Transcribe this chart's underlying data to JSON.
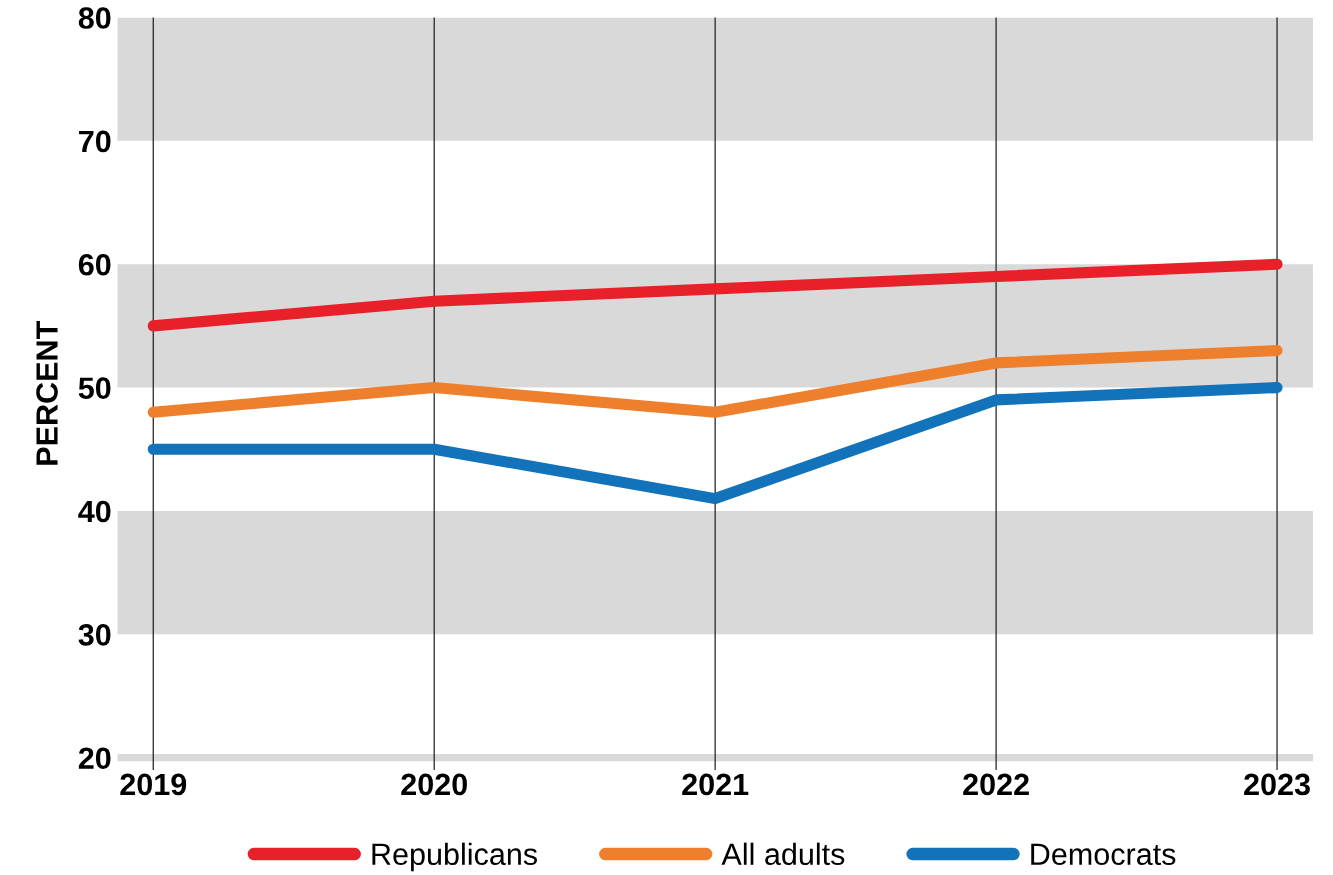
{
  "chart_data": {
    "type": "line",
    "ylabel": "PERCENT",
    "categories": [
      "2019",
      "2020",
      "2021",
      "2022",
      "2023"
    ],
    "series": [
      {
        "name": "Republicans",
        "color": "#e8202a",
        "values": [
          55,
          57,
          58,
          59,
          60
        ]
      },
      {
        "name": "All adults",
        "color": "#ee7f2d",
        "values": [
          48,
          50,
          48,
          52,
          53
        ]
      },
      {
        "name": "Democrats",
        "color": "#1273bb",
        "values": [
          45,
          45,
          41,
          49,
          50
        ]
      }
    ],
    "ylim": [
      19,
      80
    ],
    "yticks": [
      20,
      30,
      40,
      50,
      60,
      70,
      80
    ],
    "bands": [
      {
        "axis": "y",
        "from": 70,
        "to": 80,
        "color": "#d9d9d9"
      },
      {
        "axis": "y",
        "from": 50,
        "to": 60,
        "color": "#d9d9d9"
      },
      {
        "axis": "y",
        "from": 30,
        "to": 40,
        "color": "#d9d9d9"
      },
      {
        "axis": "y",
        "from": 19.7,
        "to": 20.3,
        "color": "#d9d9d9"
      }
    ],
    "grid": "x",
    "legend": "bottom",
    "marker": "none",
    "line_style": "solid"
  }
}
